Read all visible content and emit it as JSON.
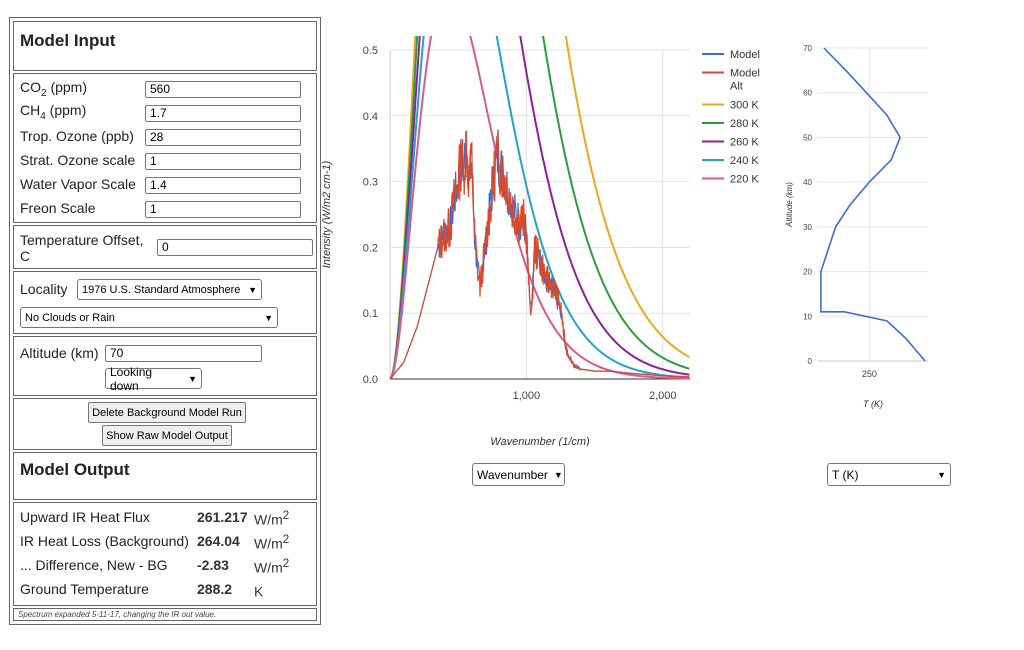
{
  "input": {
    "header": "Model Input",
    "co2": {
      "label_main": "CO",
      "label_sub": "2",
      "label_tail": " (ppm)",
      "value": "560"
    },
    "ch4": {
      "label_main": "CH",
      "label_sub": "4",
      "label_tail": " (ppm)",
      "value": "1.7"
    },
    "trop_ozone": {
      "label": "Trop. Ozone (ppb)",
      "value": "28"
    },
    "strat_ozone": {
      "label": "Strat. Ozone scale",
      "value": "1"
    },
    "water_vapor": {
      "label": "Water Vapor Scale",
      "value": "1.4"
    },
    "freon": {
      "label": "Freon Scale",
      "value": "1"
    },
    "temp_offset": {
      "label": "Temperature Offset, C",
      "value": "0"
    },
    "locality": {
      "label": "Locality",
      "selected": "1976 U.S. Standard Atmosphere",
      "clouds": "No Clouds or Rain"
    },
    "altitude": {
      "label": "Altitude (km)",
      "value": "70",
      "direction": "Looking down"
    },
    "buttons": {
      "delete": "Delete Background Model Run",
      "raw": "Show Raw Model Output"
    }
  },
  "output": {
    "header": "Model Output",
    "rows": [
      {
        "label": "Upward IR Heat Flux",
        "value": "261.217",
        "unit_main": "W/m",
        "unit_sup": "2"
      },
      {
        "label": "IR Heat Loss (Background)",
        "value": "264.04",
        "unit_main": "W/m",
        "unit_sup": "2"
      },
      {
        "label": "... Difference, New - BG",
        "value": "-2.83",
        "unit_main": "W/m",
        "unit_sup": "2"
      },
      {
        "label": "Ground Temperature",
        "value": "288.2",
        "unit_main": "K",
        "unit_sup": ""
      }
    ],
    "note": "Spectrum expanded 5-11-17, changing the IR out value."
  },
  "spectrum_controls": {
    "xaxis_select": "Wavenumber"
  },
  "profile_controls": {
    "select": "T (K)"
  },
  "chart_data": [
    {
      "type": "line",
      "xlabel": "Wavenumber (1/cm)",
      "ylabel": "Intensity (W/m2 cm-1)",
      "xlim": [
        0,
        2200
      ],
      "ylim": [
        0,
        0.5
      ],
      "xticks": [
        "1,000",
        "2,000"
      ],
      "yticks": [
        "0.0",
        "0.1",
        "0.2",
        "0.3",
        "0.4",
        "0.5"
      ],
      "legend_position": "right",
      "series": [
        {
          "name": "Model",
          "color": "#3b6fcf"
        },
        {
          "name": "Model Alt",
          "color": "#d9492b"
        },
        {
          "name": "300 K",
          "color": "#f2a51d",
          "temperature": 300
        },
        {
          "name": "280 K",
          "color": "#27a03c",
          "temperature": 280
        },
        {
          "name": "260 K",
          "color": "#8e1f9e",
          "temperature": 260
        },
        {
          "name": "240 K",
          "color": "#22a3c9",
          "temperature": 240
        },
        {
          "name": "220 K",
          "color": "#d65c8f",
          "temperature": 220
        }
      ],
      "model_alt_points": [
        [
          0,
          0
        ],
        [
          100,
          0.025
        ],
        [
          200,
          0.08
        ],
        [
          300,
          0.16
        ],
        [
          350,
          0.2
        ],
        [
          400,
          0.22
        ],
        [
          440,
          0.23
        ],
        [
          470,
          0.27
        ],
        [
          500,
          0.3
        ],
        [
          520,
          0.33
        ],
        [
          540,
          0.32
        ],
        [
          560,
          0.36
        ],
        [
          580,
          0.3
        ],
        [
          600,
          0.33
        ],
        [
          620,
          0.22
        ],
        [
          640,
          0.17
        ],
        [
          660,
          0.14
        ],
        [
          700,
          0.2
        ],
        [
          720,
          0.24
        ],
        [
          760,
          0.3
        ],
        [
          780,
          0.34
        ],
        [
          800,
          0.33
        ],
        [
          850,
          0.3
        ],
        [
          900,
          0.26
        ],
        [
          950,
          0.24
        ],
        [
          980,
          0.24
        ],
        [
          1000,
          0.22
        ],
        [
          1020,
          0.13
        ],
        [
          1040,
          0.1
        ],
        [
          1060,
          0.2
        ],
        [
          1100,
          0.18
        ],
        [
          1150,
          0.15
        ],
        [
          1200,
          0.14
        ],
        [
          1250,
          0.11
        ],
        [
          1280,
          0.06
        ],
        [
          1300,
          0.04
        ],
        [
          1350,
          0.02
        ],
        [
          1400,
          0.015
        ],
        [
          1500,
          0.012
        ],
        [
          1600,
          0.012
        ],
        [
          1800,
          0.008
        ],
        [
          2000,
          0.005
        ],
        [
          2200,
          0.003
        ]
      ]
    },
    {
      "type": "line",
      "xlabel": "T (K)",
      "ylabel": "Altitude (km)",
      "xlim": [
        215,
        290
      ],
      "ylim": [
        0,
        70
      ],
      "xticks": [
        "250"
      ],
      "yticks": [
        "0",
        "10",
        "20",
        "30",
        "40",
        "50",
        "60",
        "70"
      ],
      "series": [
        {
          "name": "",
          "color": "#3b6fcf",
          "points": [
            [
              288,
              0
            ],
            [
              275,
              5
            ],
            [
              262,
              9
            ],
            [
              233,
              11
            ],
            [
              217,
              11
            ],
            [
              217,
              20
            ],
            [
              227,
              30
            ],
            [
              237,
              35
            ],
            [
              250,
              40
            ],
            [
              265,
              45
            ],
            [
              271,
              50
            ],
            [
              262,
              55
            ],
            [
              248,
              60
            ],
            [
              234,
              65
            ],
            [
              219,
              70
            ]
          ]
        }
      ]
    }
  ]
}
